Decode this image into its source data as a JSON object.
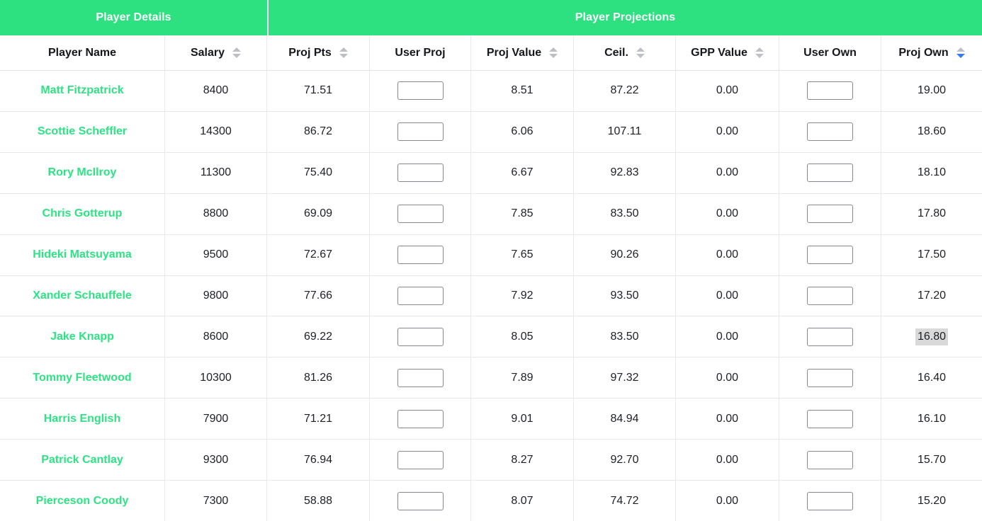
{
  "band": {
    "left_label": "Player Details",
    "right_label": "Player Projections"
  },
  "colors": {
    "band_green": "#2ee180",
    "player_name_green": "#2ee383",
    "sort_inactive_gray": "#bcc0c6",
    "sort_active_blue": "#2f7cf3",
    "highlight_gray": "#d9d9d9"
  },
  "columns": [
    {
      "key": "player",
      "label": "Player Name",
      "sort": "none",
      "type": "text"
    },
    {
      "key": "salary",
      "label": "Salary",
      "sort": "inactive",
      "type": "num"
    },
    {
      "key": "proj_pts",
      "label": "Proj Pts",
      "sort": "inactive",
      "type": "num"
    },
    {
      "key": "user_proj",
      "label": "User Proj",
      "sort": "none",
      "type": "input"
    },
    {
      "key": "proj_value",
      "label": "Proj Value",
      "sort": "inactive",
      "type": "num"
    },
    {
      "key": "ceil",
      "label": "Ceil.",
      "sort": "inactive",
      "type": "num"
    },
    {
      "key": "gpp_value",
      "label": "GPP Value",
      "sort": "inactive",
      "type": "num"
    },
    {
      "key": "user_own",
      "label": "User Own",
      "sort": "none",
      "type": "input"
    },
    {
      "key": "proj_own",
      "label": "Proj Own",
      "sort": "desc",
      "type": "num"
    }
  ],
  "rows": [
    {
      "player": "Matt Fitzpatrick",
      "salary": "8400",
      "proj_pts": "71.51",
      "user_proj": "",
      "proj_value": "8.51",
      "ceil": "87.22",
      "gpp_value": "0.00",
      "user_own": "",
      "proj_own": "19.00",
      "proj_own_highlight": false
    },
    {
      "player": "Scottie Scheffler",
      "salary": "14300",
      "proj_pts": "86.72",
      "user_proj": "",
      "proj_value": "6.06",
      "ceil": "107.11",
      "gpp_value": "0.00",
      "user_own": "",
      "proj_own": "18.60",
      "proj_own_highlight": false
    },
    {
      "player": "Rory McIlroy",
      "salary": "11300",
      "proj_pts": "75.40",
      "user_proj": "",
      "proj_value": "6.67",
      "ceil": "92.83",
      "gpp_value": "0.00",
      "user_own": "",
      "proj_own": "18.10",
      "proj_own_highlight": false
    },
    {
      "player": "Chris Gotterup",
      "salary": "8800",
      "proj_pts": "69.09",
      "user_proj": "",
      "proj_value": "7.85",
      "ceil": "83.50",
      "gpp_value": "0.00",
      "user_own": "",
      "proj_own": "17.80",
      "proj_own_highlight": false
    },
    {
      "player": "Hideki Matsuyama",
      "salary": "9500",
      "proj_pts": "72.67",
      "user_proj": "",
      "proj_value": "7.65",
      "ceil": "90.26",
      "gpp_value": "0.00",
      "user_own": "",
      "proj_own": "17.50",
      "proj_own_highlight": false
    },
    {
      "player": "Xander Schauffele",
      "salary": "9800",
      "proj_pts": "77.66",
      "user_proj": "",
      "proj_value": "7.92",
      "ceil": "93.50",
      "gpp_value": "0.00",
      "user_own": "",
      "proj_own": "17.20",
      "proj_own_highlight": false
    },
    {
      "player": "Jake Knapp",
      "salary": "8600",
      "proj_pts": "69.22",
      "user_proj": "",
      "proj_value": "8.05",
      "ceil": "83.50",
      "gpp_value": "0.00",
      "user_own": "",
      "proj_own": "16.80",
      "proj_own_highlight": true
    },
    {
      "player": "Tommy Fleetwood",
      "salary": "10300",
      "proj_pts": "81.26",
      "user_proj": "",
      "proj_value": "7.89",
      "ceil": "97.32",
      "gpp_value": "0.00",
      "user_own": "",
      "proj_own": "16.40",
      "proj_own_highlight": false
    },
    {
      "player": "Harris English",
      "salary": "7900",
      "proj_pts": "71.21",
      "user_proj": "",
      "proj_value": "9.01",
      "ceil": "84.94",
      "gpp_value": "0.00",
      "user_own": "",
      "proj_own": "16.10",
      "proj_own_highlight": false
    },
    {
      "player": "Patrick Cantlay",
      "salary": "9300",
      "proj_pts": "76.94",
      "user_proj": "",
      "proj_value": "8.27",
      "ceil": "92.70",
      "gpp_value": "0.00",
      "user_own": "",
      "proj_own": "15.70",
      "proj_own_highlight": false
    },
    {
      "player": "Pierceson Coody",
      "salary": "7300",
      "proj_pts": "58.88",
      "user_proj": "",
      "proj_value": "8.07",
      "ceil": "74.72",
      "gpp_value": "0.00",
      "user_own": "",
      "proj_own": "15.20",
      "proj_own_highlight": false
    }
  ]
}
